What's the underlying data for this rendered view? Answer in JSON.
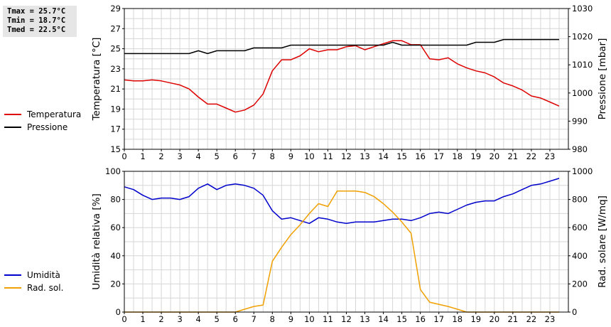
{
  "stats": {
    "tmax": "Tmax = 25.7°C",
    "tmin": "Tmin = 18.7°C",
    "tmed": "Tmed = 22.5°C"
  },
  "chart_data": [
    {
      "type": "line",
      "ylabel_left": "Temperatura [°C]",
      "ylabel_right": "Pressione [mbar]",
      "xlim": [
        0,
        24
      ],
      "x_ticks": [
        0,
        1,
        2,
        3,
        4,
        5,
        6,
        7,
        8,
        9,
        10,
        11,
        12,
        13,
        14,
        15,
        16,
        17,
        18,
        19,
        20,
        21,
        22,
        23
      ],
      "ylim_left": [
        15,
        29
      ],
      "y_ticks_left": [
        15,
        17,
        19,
        21,
        23,
        25,
        27,
        29
      ],
      "ylim_right": [
        980,
        1030
      ],
      "y_ticks_right": [
        980,
        990,
        1000,
        1010,
        1020,
        1030
      ],
      "grid": true,
      "legend_position": "left",
      "series": [
        {
          "name": "Temperatura",
          "axis": "left",
          "color": "#dd0000",
          "x": [
            0,
            0.5,
            1,
            1.5,
            2,
            2.5,
            3,
            3.5,
            4,
            4.5,
            5,
            5.5,
            6,
            6.5,
            7,
            7.5,
            8,
            8.5,
            9,
            9.5,
            10,
            10.5,
            11,
            11.5,
            12,
            12.5,
            13,
            13.5,
            14,
            14.5,
            15,
            15.5,
            16,
            16.5,
            17,
            17.5,
            18,
            18.5,
            19,
            19.5,
            20,
            20.5,
            21,
            21.5,
            22,
            22.5,
            23,
            23.5
          ],
          "y": [
            21.9,
            21.8,
            21.8,
            21.9,
            21.8,
            21.6,
            21.4,
            21.0,
            20.2,
            19.5,
            19.5,
            19.1,
            18.7,
            18.9,
            19.4,
            20.5,
            22.8,
            23.9,
            23.9,
            24.3,
            25.0,
            24.7,
            24.9,
            24.9,
            25.2,
            25.3,
            24.9,
            25.2,
            25.5,
            25.8,
            25.8,
            25.4,
            25.4,
            24.0,
            23.9,
            24.1,
            23.5,
            23.1,
            22.8,
            22.6,
            22.2,
            21.6,
            21.3,
            20.9,
            20.3,
            20.1,
            19.7,
            19.3
          ]
        },
        {
          "name": "Pressione",
          "axis": "right",
          "color": "#000000",
          "x": [
            0,
            0.5,
            1,
            1.5,
            2,
            2.5,
            3,
            3.5,
            4,
            4.5,
            5,
            5.5,
            6,
            6.5,
            7,
            7.5,
            8,
            8.5,
            9,
            9.5,
            10,
            10.5,
            11,
            11.5,
            12,
            12.5,
            13,
            13.5,
            14,
            14.5,
            15,
            15.5,
            16,
            16.5,
            17,
            17.5,
            18,
            18.5,
            19,
            19.5,
            20,
            20.5,
            21,
            21.5,
            22,
            22.5,
            23,
            23.5
          ],
          "y": [
            1014,
            1014,
            1014,
            1014,
            1014,
            1014,
            1014,
            1014,
            1015,
            1014,
            1015,
            1015,
            1015,
            1015,
            1016,
            1016,
            1016,
            1016,
            1017,
            1017,
            1017,
            1017,
            1017,
            1017,
            1017,
            1017,
            1017,
            1017,
            1017,
            1018,
            1017,
            1017,
            1017,
            1017,
            1017,
            1017,
            1017,
            1017,
            1018,
            1018,
            1018,
            1019,
            1019,
            1019,
            1019,
            1019,
            1019,
            1019
          ]
        }
      ]
    },
    {
      "type": "line",
      "ylabel_left": "Umidità relativa [%]",
      "ylabel_right": "Rad. solare [W/mq]",
      "xlim": [
        0,
        24
      ],
      "x_ticks": [
        0,
        1,
        2,
        3,
        4,
        5,
        6,
        7,
        8,
        9,
        10,
        11,
        12,
        13,
        14,
        15,
        16,
        17,
        18,
        19,
        20,
        21,
        22,
        23
      ],
      "ylim_left": [
        0,
        100
      ],
      "y_ticks_left": [
        0,
        20,
        40,
        60,
        80,
        100
      ],
      "ylim_right": [
        0,
        1000
      ],
      "y_ticks_right": [
        0,
        200,
        400,
        600,
        800,
        1000
      ],
      "grid": true,
      "legend_position": "left",
      "series": [
        {
          "name": "Umidità",
          "axis": "left",
          "color": "#0000cc",
          "x": [
            0,
            0.5,
            1,
            1.5,
            2,
            2.5,
            3,
            3.5,
            4,
            4.5,
            5,
            5.5,
            6,
            6.5,
            7,
            7.5,
            8,
            8.5,
            9,
            9.5,
            10,
            10.5,
            11,
            11.5,
            12,
            12.5,
            13,
            13.5,
            14,
            14.5,
            15,
            15.5,
            16,
            16.5,
            17,
            17.5,
            18,
            18.5,
            19,
            19.5,
            20,
            20.5,
            21,
            21.5,
            22,
            22.5,
            23,
            23.5
          ],
          "y": [
            89,
            87,
            83,
            80,
            81,
            81,
            80,
            82,
            88,
            91,
            87,
            90,
            91,
            90,
            88,
            83,
            72,
            66,
            67,
            65,
            63,
            67,
            66,
            64,
            63,
            64,
            64,
            64,
            65,
            66,
            66,
            65,
            67,
            70,
            71,
            70,
            73,
            76,
            78,
            79,
            79,
            82,
            84,
            87,
            90,
            91,
            93,
            95
          ]
        },
        {
          "name": "Rad. sol.",
          "axis": "right",
          "color": "#f0a000",
          "x": [
            0,
            0.5,
            1,
            1.5,
            2,
            2.5,
            3,
            3.5,
            4,
            4.5,
            5,
            5.5,
            6,
            6.5,
            7,
            7.5,
            8,
            8.5,
            9,
            9.5,
            10,
            10.5,
            11,
            11.5,
            12,
            12.5,
            13,
            13.5,
            14,
            14.5,
            15,
            15.5,
            16,
            16.5,
            17,
            17.5,
            18,
            18.5,
            19,
            19.5,
            20,
            20.5,
            21,
            21.5,
            22,
            22.5,
            23,
            23.5
          ],
          "y": [
            0,
            0,
            0,
            0,
            0,
            0,
            0,
            0,
            0,
            0,
            0,
            0,
            0,
            20,
            40,
            50,
            360,
            460,
            550,
            620,
            700,
            770,
            750,
            860,
            860,
            860,
            850,
            820,
            770,
            710,
            640,
            560,
            160,
            70,
            55,
            40,
            20,
            0,
            0,
            0,
            0,
            0,
            0,
            0,
            0,
            0,
            0,
            0
          ]
        }
      ]
    }
  ]
}
